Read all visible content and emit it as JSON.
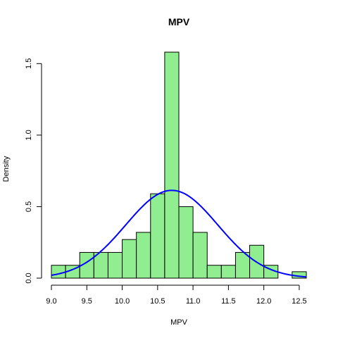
{
  "chart_data": {
    "type": "bar",
    "title": "MPV",
    "xlabel": "MPV",
    "ylabel": "Density",
    "xlim": [
      9.0,
      12.6
    ],
    "ylim": [
      0,
      1.6
    ],
    "x_ticks": [
      "9.0",
      "9.5",
      "10.0",
      "10.5",
      "11.0",
      "11.5",
      "12.0",
      "12.5"
    ],
    "y_ticks": [
      "0.0",
      "0.5",
      "1.0",
      "1.5"
    ],
    "bins": [
      {
        "from": 9.0,
        "to": 9.2,
        "density": 0.09
      },
      {
        "from": 9.2,
        "to": 9.4,
        "density": 0.09
      },
      {
        "from": 9.4,
        "to": 9.6,
        "density": 0.18
      },
      {
        "from": 9.6,
        "to": 9.8,
        "density": 0.18
      },
      {
        "from": 9.8,
        "to": 10.0,
        "density": 0.18
      },
      {
        "from": 10.0,
        "to": 10.2,
        "density": 0.27
      },
      {
        "from": 10.2,
        "to": 10.4,
        "density": 0.32
      },
      {
        "from": 10.4,
        "to": 10.6,
        "density": 0.59
      },
      {
        "from": 10.6,
        "to": 10.8,
        "density": 1.58
      },
      {
        "from": 10.8,
        "to": 11.0,
        "density": 0.5
      },
      {
        "from": 11.0,
        "to": 11.2,
        "density": 0.32
      },
      {
        "from": 11.2,
        "to": 11.4,
        "density": 0.09
      },
      {
        "from": 11.4,
        "to": 11.6,
        "density": 0.09
      },
      {
        "from": 11.6,
        "to": 11.8,
        "density": 0.18
      },
      {
        "from": 11.8,
        "to": 12.0,
        "density": 0.23
      },
      {
        "from": 12.0,
        "to": 12.2,
        "density": 0.09
      },
      {
        "from": 12.2,
        "to": 12.4,
        "density": 0.0
      },
      {
        "from": 12.4,
        "to": 12.6,
        "density": 0.045
      }
    ],
    "curve": {
      "type": "normal",
      "mean": 10.7,
      "sd": 0.65
    },
    "colors": {
      "bar_fill": "#90EE90",
      "bar_stroke": "#000000",
      "curve": "#0000FF"
    },
    "grid": false,
    "legend": "none"
  }
}
